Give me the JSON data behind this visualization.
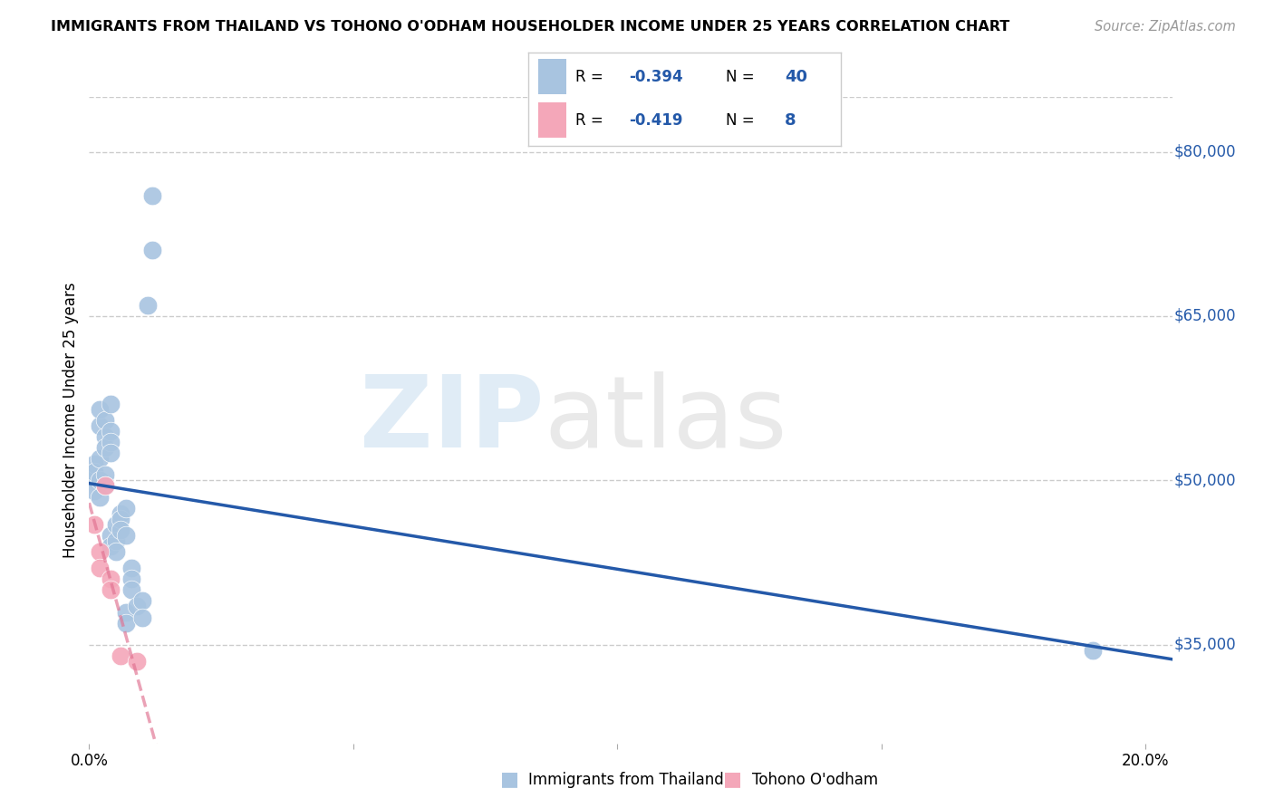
{
  "title": "IMMIGRANTS FROM THAILAND VS TOHONO O'ODHAM HOUSEHOLDER INCOME UNDER 25 YEARS CORRELATION CHART",
  "source": "Source: ZipAtlas.com",
  "ylabel": "Householder Income Under 25 years",
  "xlim": [
    0.0,
    0.205
  ],
  "ylim": [
    26000,
    85000
  ],
  "yticks": [
    35000,
    50000,
    65000,
    80000
  ],
  "ytick_labels": [
    "$35,000",
    "$50,000",
    "$65,000",
    "$80,000"
  ],
  "r_thailand": -0.394,
  "n_thailand": 40,
  "r_tohono": -0.419,
  "n_tohono": 8,
  "thailand_color": "#a8c4e0",
  "tohono_color": "#f4a7b9",
  "trend_thailand_color": "#2459a9",
  "trend_tohono_color": "#e07090",
  "axis_label_color": "#2459a9",
  "background_color": "#ffffff",
  "grid_color": "#cccccc",
  "thailand_points": [
    [
      0.001,
      50200
    ],
    [
      0.001,
      51500
    ],
    [
      0.001,
      49000
    ],
    [
      0.001,
      50800
    ],
    [
      0.002,
      55000
    ],
    [
      0.002,
      56500
    ],
    [
      0.002,
      52000
    ],
    [
      0.002,
      50000
    ],
    [
      0.002,
      48500
    ],
    [
      0.003,
      55500
    ],
    [
      0.003,
      54000
    ],
    [
      0.003,
      53000
    ],
    [
      0.003,
      50500
    ],
    [
      0.003,
      49500
    ],
    [
      0.004,
      57000
    ],
    [
      0.004,
      54500
    ],
    [
      0.004,
      53500
    ],
    [
      0.004,
      52500
    ],
    [
      0.004,
      45000
    ],
    [
      0.004,
      44000
    ],
    [
      0.005,
      46000
    ],
    [
      0.005,
      44500
    ],
    [
      0.005,
      43500
    ],
    [
      0.006,
      47000
    ],
    [
      0.006,
      46500
    ],
    [
      0.006,
      45500
    ],
    [
      0.007,
      47500
    ],
    [
      0.007,
      45000
    ],
    [
      0.007,
      38000
    ],
    [
      0.007,
      37000
    ],
    [
      0.008,
      42000
    ],
    [
      0.008,
      41000
    ],
    [
      0.008,
      40000
    ],
    [
      0.009,
      38500
    ],
    [
      0.01,
      39000
    ],
    [
      0.01,
      37500
    ],
    [
      0.011,
      66000
    ],
    [
      0.012,
      71000
    ],
    [
      0.012,
      76000
    ],
    [
      0.19,
      34500
    ]
  ],
  "tohono_points": [
    [
      0.001,
      46000
    ],
    [
      0.002,
      43500
    ],
    [
      0.002,
      42000
    ],
    [
      0.003,
      49500
    ],
    [
      0.004,
      41000
    ],
    [
      0.004,
      40000
    ],
    [
      0.006,
      34000
    ],
    [
      0.009,
      33500
    ]
  ]
}
